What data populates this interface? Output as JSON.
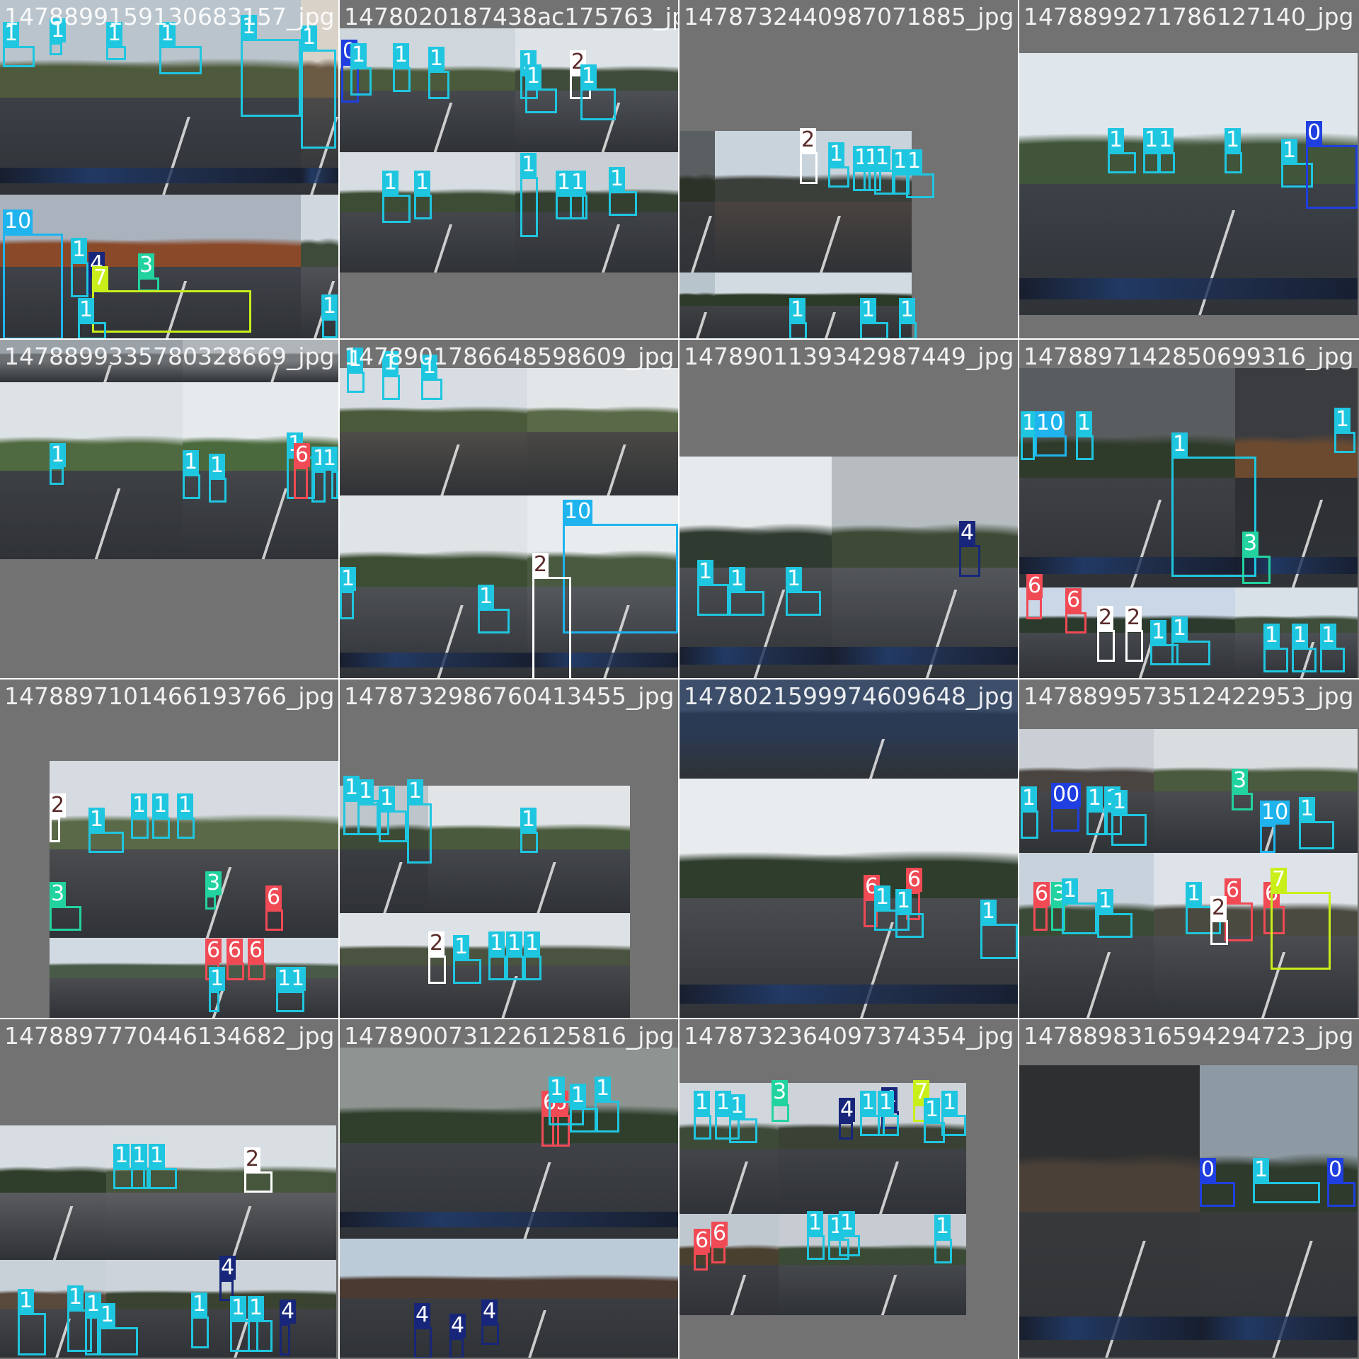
{
  "colors": {
    "0": "#1f3fe0",
    "1": "#1fc6e0",
    "2": "#ffffff",
    "3": "#22d3a0",
    "4": "#17267a",
    "6": "#f04a55",
    "7": "#c8ef1a",
    "10": "#1fb4ee"
  },
  "tiles": [
    {
      "filename": "1478899159130683157_jpg",
      "labels": [
        "1",
        "1",
        "1",
        "1",
        "1",
        "1",
        "10",
        "1",
        "4",
        "3",
        "7",
        "1",
        "1"
      ]
    },
    {
      "filename": "1478020187438ac175763_jpg",
      "labels": [
        "0",
        "1",
        "1",
        "1",
        "1",
        "1",
        "2",
        "1",
        "1",
        "1",
        "1",
        "1",
        "1",
        "1"
      ]
    },
    {
      "filename": "1478732440987071885_jpg",
      "labels": [
        "2",
        "1",
        "1",
        "1",
        "1",
        "1",
        "1",
        "1",
        "1",
        "1"
      ]
    },
    {
      "filename": "1478899271786127140_jpg",
      "labels": [
        "1",
        "1",
        "1",
        "1",
        "1",
        "0"
      ]
    },
    {
      "filename": "1478899335780328669_jpg",
      "labels": [
        "1",
        "1",
        "1",
        "1",
        "6",
        "1",
        "1"
      ]
    },
    {
      "filename": "1478901786648598609_jpg",
      "labels": [
        "1",
        "1",
        "1",
        "10",
        "1",
        "1",
        "2"
      ]
    },
    {
      "filename": "1478901139342987449_jpg",
      "labels": [
        "4",
        "1",
        "1",
        "1"
      ]
    },
    {
      "filename": "1478897142850699316_jpg",
      "labels": [
        "1",
        "10",
        "1",
        "1",
        "1",
        "3",
        "6",
        "6",
        "2",
        "2",
        "1",
        "1",
        "1",
        "1",
        "1"
      ]
    },
    {
      "filename": "1478897101466193766_jpg",
      "labels": [
        "2",
        "1",
        "1",
        "1",
        "1",
        "3",
        "3",
        "6",
        "6",
        "6",
        "6",
        "1",
        "11"
      ]
    },
    {
      "filename": "1478732986760413455_jpg",
      "labels": [
        "1",
        "1",
        "1",
        "1",
        "1",
        "2",
        "1",
        "1",
        "1",
        "1"
      ]
    },
    {
      "filename": "1478021599974609648_jpg",
      "labels": [
        "6",
        "6",
        "1",
        "1",
        "1"
      ]
    },
    {
      "filename": "1478899573512422953_jpg",
      "labels": [
        "1",
        "00",
        "1",
        "1",
        "1",
        "1",
        "10",
        "3",
        "6",
        "3",
        "1",
        "1",
        "1",
        "6",
        "6",
        "2",
        "7"
      ]
    },
    {
      "filename": "1478897770446134682_jpg",
      "labels": [
        "1",
        "1",
        "1",
        "1",
        "1",
        "1",
        "1",
        "2",
        "4",
        "1",
        "1",
        "1",
        "4"
      ]
    },
    {
      "filename": "1478900731226125816_jpg",
      "labels": [
        "6",
        "6",
        "1",
        "1",
        "1",
        "4",
        "4",
        "4"
      ]
    },
    {
      "filename": "1478732364097374354_jpg",
      "labels": [
        "3",
        "4",
        "4",
        "7",
        "1",
        "1",
        "1",
        "1",
        "1",
        "1",
        "1",
        "6",
        "6",
        "1",
        "1",
        "1",
        "1"
      ]
    },
    {
      "filename": "1478898316594294723_jpg",
      "labels": [
        "0",
        "1",
        "0"
      ]
    }
  ]
}
